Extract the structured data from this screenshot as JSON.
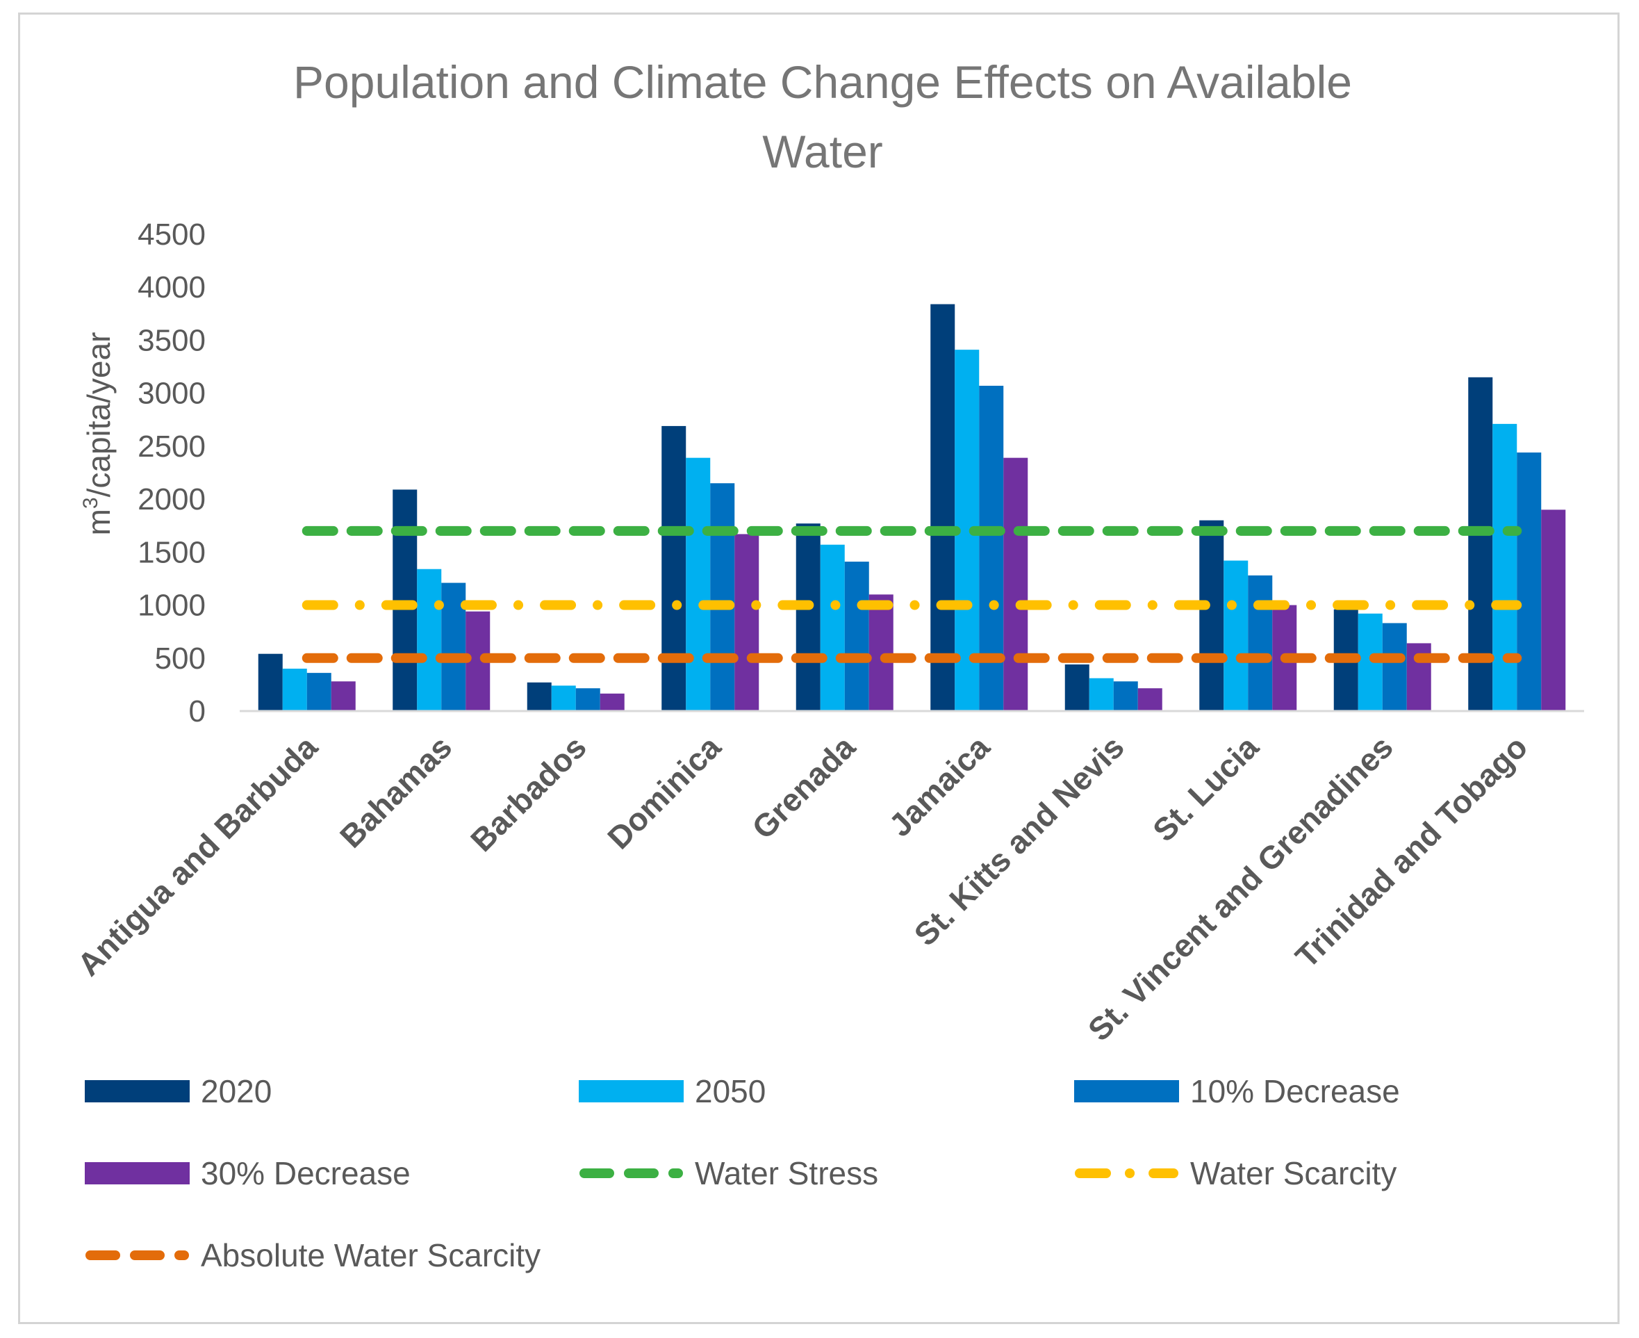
{
  "chart_data": {
    "type": "bar",
    "title_lines": [
      "Population and Climate Change Effects on Available",
      "Water"
    ],
    "ylabel": {
      "prefix": "m",
      "sup": "3",
      "suffix": "/capita/year"
    },
    "ylim": [
      0,
      4500
    ],
    "yticks": [
      0,
      500,
      1000,
      1500,
      2000,
      2500,
      3000,
      3500,
      4000,
      4500
    ],
    "categories": [
      "Antigua and Barbuda",
      "Bahamas",
      "Barbados",
      "Dominica",
      "Grenada",
      "Jamaica",
      "St. Kitts and Nevis",
      "St. Lucia",
      "St. Vincent and Grenadines",
      "Trinidad and Tobago"
    ],
    "series": [
      {
        "name": "2020",
        "color": "#003f7a",
        "values": [
          540,
          2090,
          270,
          2690,
          1770,
          3840,
          440,
          1800,
          960,
          3150
        ]
      },
      {
        "name": "2050",
        "color": "#00b0f0",
        "values": [
          400,
          1340,
          240,
          2390,
          1570,
          3410,
          310,
          1420,
          920,
          2710
        ]
      },
      {
        "name": "10% Decrease",
        "color": "#0070c0",
        "values": [
          360,
          1210,
          215,
          2150,
          1410,
          3070,
          280,
          1280,
          830,
          2440
        ]
      },
      {
        "name": "30% Decrease",
        "color": "#7030a0",
        "values": [
          280,
          940,
          165,
          1670,
          1100,
          2390,
          215,
          1000,
          640,
          1900
        ]
      }
    ],
    "thresholds": [
      {
        "name": "Water Stress",
        "value": 1700,
        "color": "#3cb043",
        "style": "dash"
      },
      {
        "name": "Water Scarcity",
        "value": 1000,
        "color": "#ffc000",
        "style": "dashdot"
      },
      {
        "name": "Absolute Water Scarcity",
        "value": 500,
        "color": "#e36c0a",
        "style": "dash"
      }
    ]
  }
}
